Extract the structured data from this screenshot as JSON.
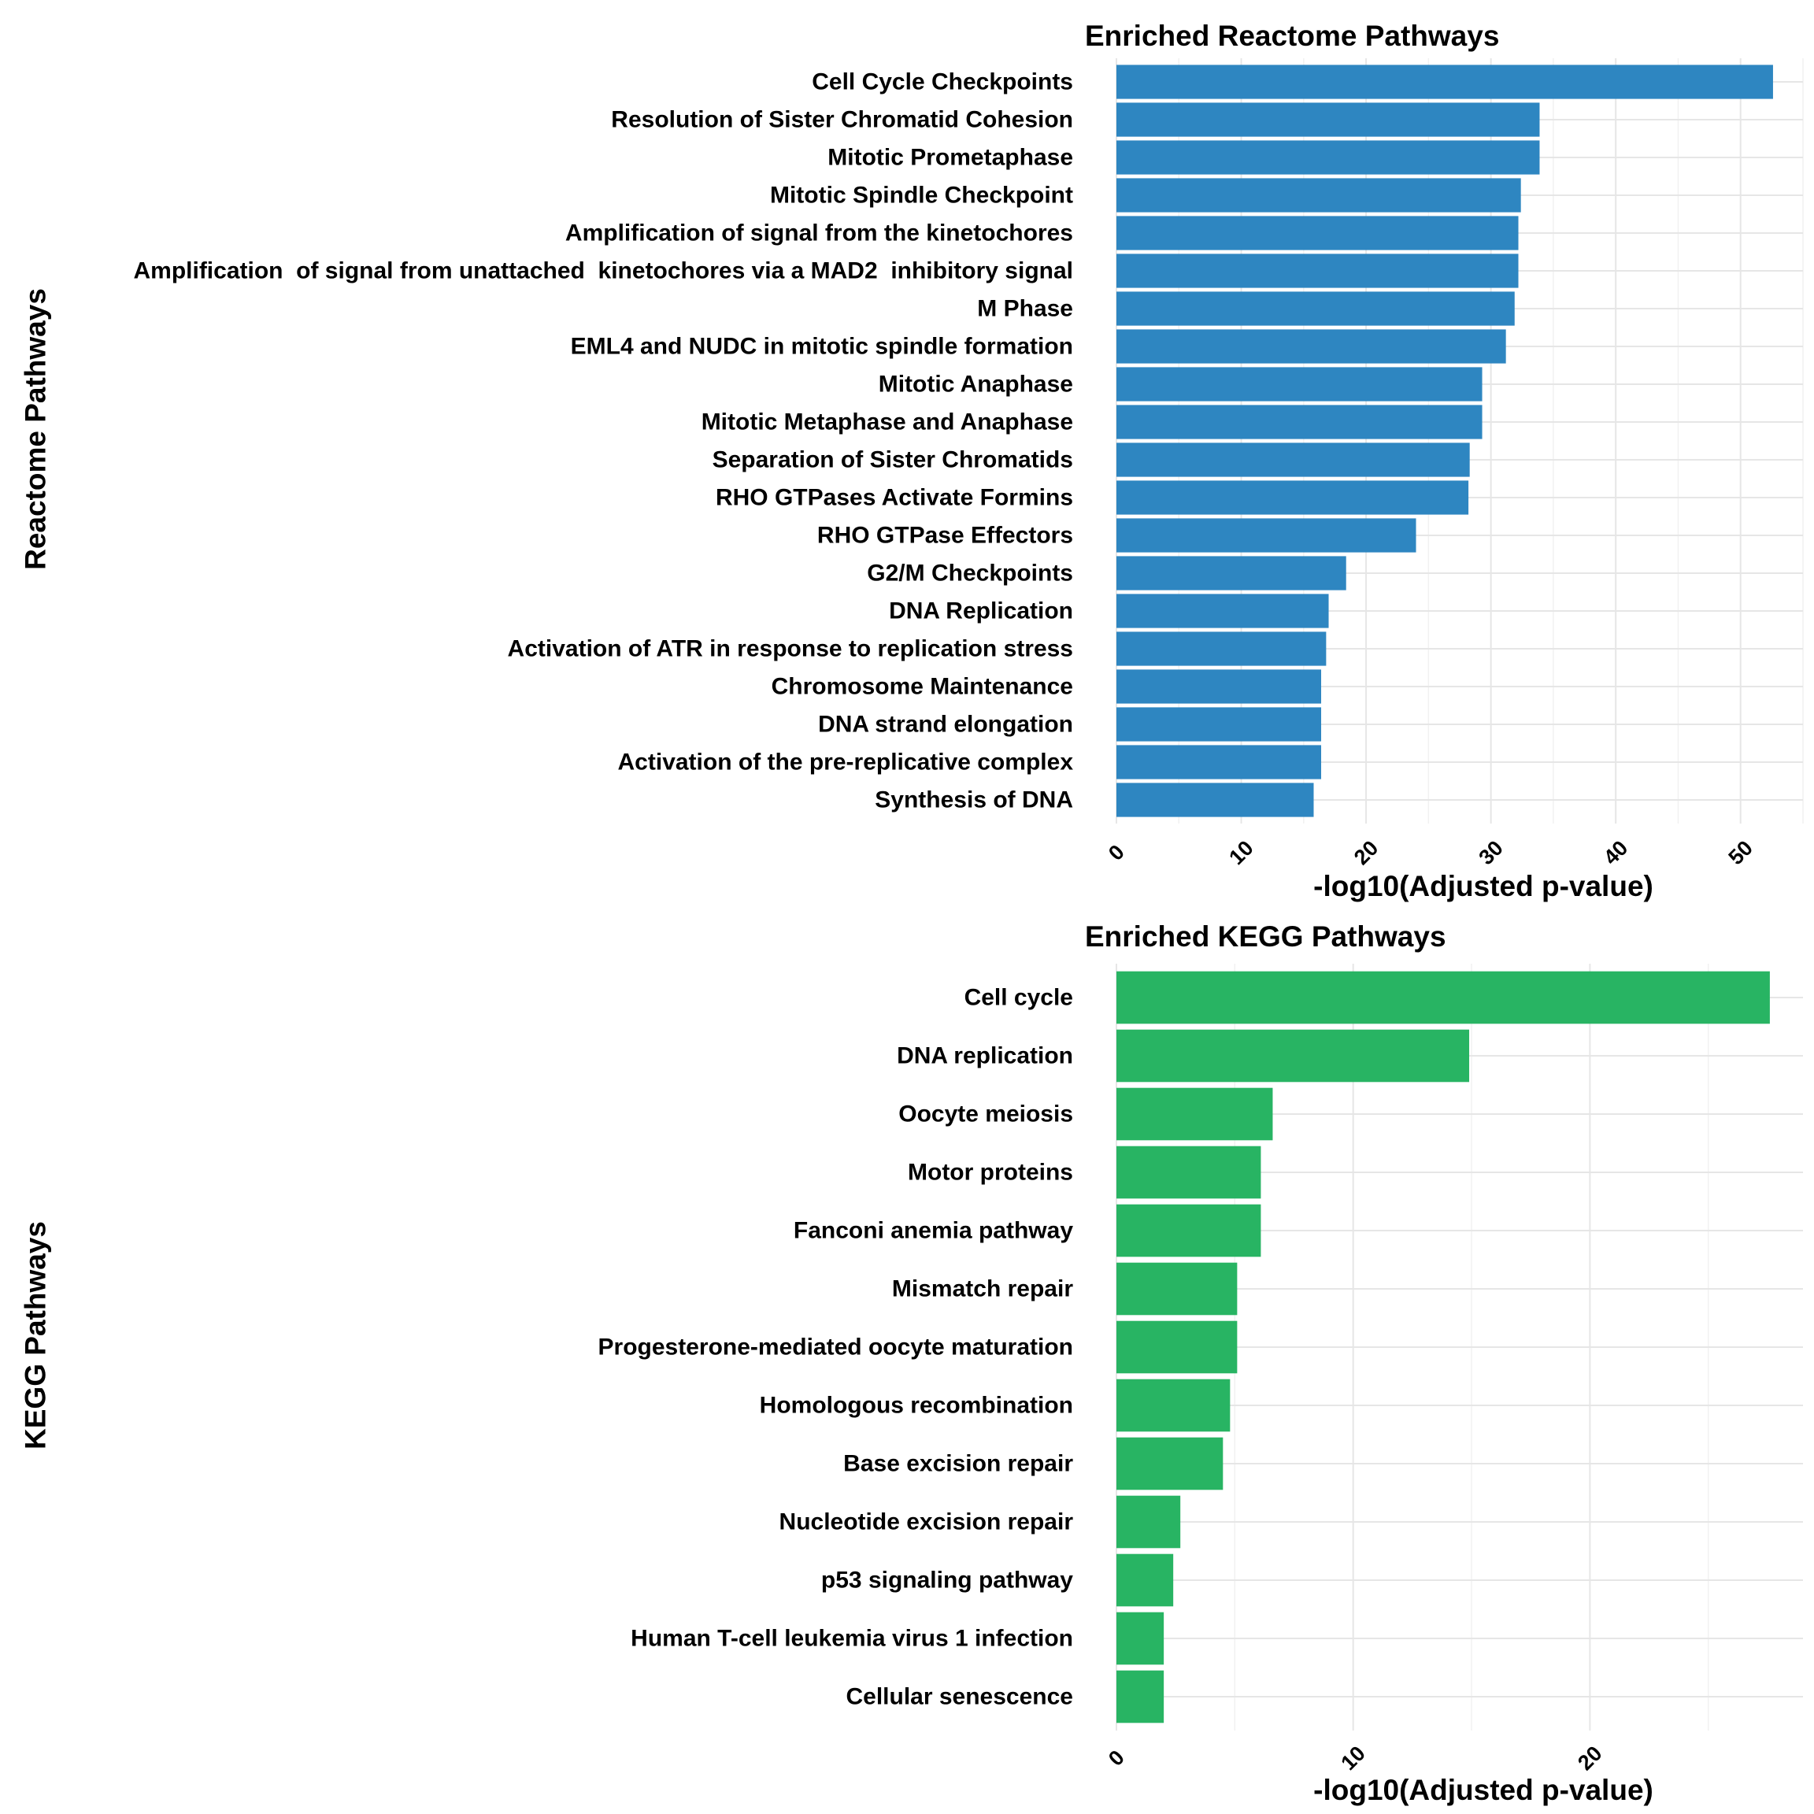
{
  "chart_data": [
    {
      "type": "bar",
      "orientation": "horizontal",
      "title": "Enriched Reactome Pathways",
      "xlabel": "-log10(Adjusted p-value)",
      "ylabel": "Reactome Pathways",
      "xlim": [
        0,
        55
      ],
      "xticks": [
        0,
        10,
        20,
        30,
        40,
        50
      ],
      "bar_color": "#2e86c1",
      "categories": [
        "Cell Cycle Checkpoints",
        "Resolution of Sister Chromatid Cohesion",
        "Mitotic Prometaphase",
        "Mitotic Spindle Checkpoint",
        "Amplification of signal from the kinetochores",
        "Amplification  of signal from unattached  kinetochores via a MAD2  inhibitory signal",
        "M Phase",
        "EML4 and NUDC in mitotic spindle formation",
        "Mitotic Anaphase",
        "Mitotic Metaphase and Anaphase",
        "Separation of Sister Chromatids",
        "RHO GTPases Activate Formins",
        "RHO GTPase Effectors",
        "G2/M Checkpoints",
        "DNA Replication",
        "Activation of ATR in response to replication stress",
        "Chromosome Maintenance",
        "DNA strand elongation",
        "Activation of the pre-replicative complex",
        "Synthesis of DNA"
      ],
      "values": [
        52.6,
        33.9,
        33.9,
        32.4,
        32.2,
        32.2,
        31.9,
        31.2,
        29.3,
        29.3,
        28.3,
        28.2,
        24.0,
        18.4,
        17.0,
        16.8,
        16.4,
        16.4,
        16.4,
        15.8
      ]
    },
    {
      "type": "bar",
      "orientation": "horizontal",
      "title": "Enriched KEGG Pathways",
      "xlabel": "-log10(Adjusted p-value)",
      "ylabel": "KEGG Pathways",
      "xlim": [
        0,
        29
      ],
      "xticks": [
        0,
        10,
        20
      ],
      "bar_color": "#28b463",
      "categories": [
        "Cell cycle",
        "DNA replication",
        "Oocyte meiosis",
        "Motor proteins",
        "Fanconi anemia pathway",
        "Mismatch repair",
        "Progesterone-mediated oocyte maturation",
        "Homologous recombination",
        "Base excision repair",
        "Nucleotide excision repair",
        "p53 signaling pathway",
        "Human T-cell leukemia virus 1 infection",
        "Cellular senescence"
      ],
      "values": [
        27.6,
        14.9,
        6.6,
        6.1,
        6.1,
        5.1,
        5.1,
        4.8,
        4.5,
        2.7,
        2.4,
        2.0,
        2.0
      ]
    }
  ]
}
